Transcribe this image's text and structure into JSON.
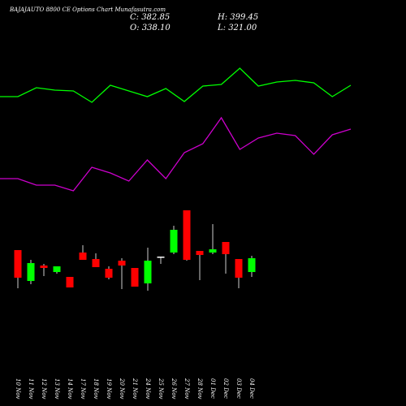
{
  "chart_data": {
    "type": "candlestick",
    "title": "BAJAJAUTO 8800 CE Options Chart Munafasutra.com",
    "info": [
      "C: 382.85",
      "H: 399.45",
      "O: 338.10",
      "L: 321.00"
    ],
    "categories": [
      "10 Nov",
      "11 Nov",
      "12 Nov",
      "13 Nov",
      "14 Nov",
      "17 Nov",
      "18 Nov",
      "19 Nov",
      "20 Nov",
      "21 Nov",
      "24 Nov",
      "25 Nov",
      "26 Nov",
      "27 Nov",
      "28 Nov",
      "01 Dec",
      "02 Dec",
      "03 Dec",
      "04 Dec"
    ],
    "open": [
      192,
      154,
      173,
      165,
      159,
      189,
      181,
      169,
      179,
      170,
      151,
      184,
      189,
      241,
      191,
      189,
      202,
      181,
      165
    ],
    "high": [
      192,
      180,
      175,
      172,
      159,
      198,
      188,
      172,
      182,
      170,
      195,
      184,
      222,
      241,
      191,
      224,
      202,
      181,
      185
    ],
    "low": [
      145,
      150,
      160,
      163,
      146,
      180,
      171,
      156,
      144,
      147,
      142,
      175,
      187,
      179,
      155,
      187,
      163,
      145,
      159
    ],
    "close": [
      158,
      176,
      170,
      172,
      146,
      180,
      171,
      158,
      173,
      147,
      179,
      183,
      217,
      180,
      186,
      193,
      187,
      158,
      182
    ],
    "up_color": "#00ff00",
    "down_color": "#ff0000",
    "series": [
      {
        "color": "#00ff00",
        "values": [
          381,
          392,
          389,
          388,
          374,
          395,
          388,
          381,
          391,
          375,
          394,
          396,
          416,
          394,
          399,
          401,
          398,
          381,
          395
        ]
      },
      {
        "color": "#cc00cc",
        "values": [
          280,
          272,
          272,
          265,
          294,
          287,
          277,
          303,
          280,
          312,
          323,
          355,
          316,
          330,
          336,
          333,
          310,
          334,
          341
        ]
      }
    ],
    "ylim": [
      0,
      500
    ]
  }
}
